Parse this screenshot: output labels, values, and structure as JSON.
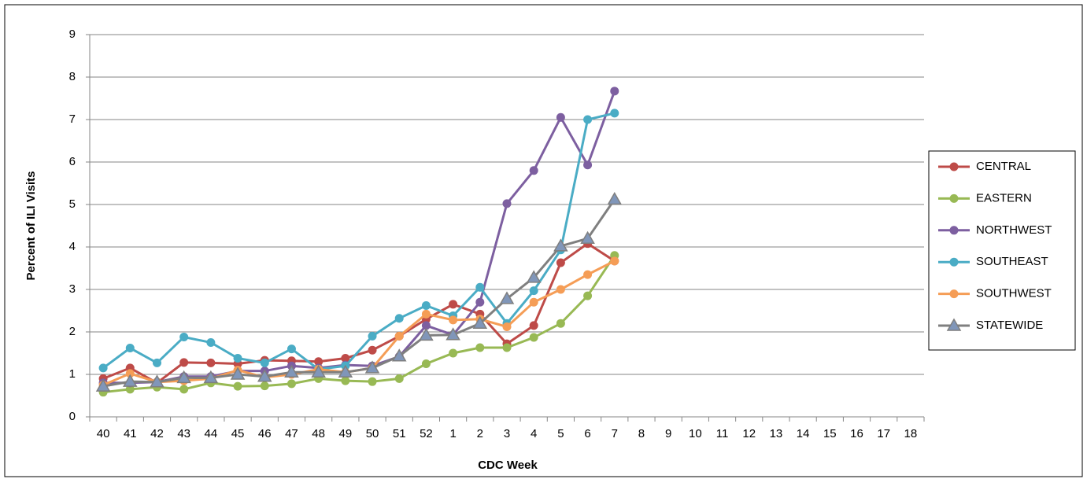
{
  "chart_data": {
    "type": "line",
    "xlabel": "CDC Week",
    "ylabel": "Percent of ILI Visits",
    "categories": [
      40,
      41,
      42,
      43,
      44,
      45,
      46,
      47,
      48,
      49,
      50,
      51,
      52,
      1,
      2,
      3,
      4,
      5,
      6,
      7,
      8,
      9,
      10,
      11,
      12,
      13,
      14,
      15,
      16,
      17,
      18
    ],
    "ylim": [
      0,
      9
    ],
    "yticks": [
      0,
      1,
      2,
      3,
      4,
      5,
      6,
      7,
      8,
      9
    ],
    "grid": true,
    "legend": "right",
    "series": [
      {
        "name": "CENTRAL",
        "color": "#be4b48",
        "marker": "circle",
        "values": [
          0.9,
          1.15,
          0.8,
          1.28,
          1.27,
          1.25,
          1.33,
          1.32,
          1.3,
          1.38,
          1.57,
          1.9,
          2.3,
          2.65,
          2.42,
          1.72,
          2.15,
          3.63,
          4.08,
          3.67,
          null,
          null,
          null,
          null,
          null,
          null,
          null,
          null,
          null,
          null,
          null
        ]
      },
      {
        "name": "EASTERN",
        "color": "#98b954",
        "marker": "circle",
        "values": [
          0.58,
          0.65,
          0.7,
          0.65,
          0.8,
          0.72,
          0.73,
          0.78,
          0.9,
          0.85,
          0.83,
          0.9,
          1.25,
          1.5,
          1.63,
          1.63,
          1.87,
          2.2,
          2.85,
          3.8,
          null,
          null,
          null,
          null,
          null,
          null,
          null,
          null,
          null,
          null,
          null
        ]
      },
      {
        "name": "NORTHWEST",
        "color": "#7d5fa0",
        "marker": "circle",
        "values": [
          0.8,
          0.8,
          0.82,
          0.95,
          0.95,
          1.08,
          1.08,
          1.2,
          1.15,
          1.22,
          1.2,
          1.42,
          2.15,
          1.93,
          2.7,
          5.02,
          5.8,
          7.05,
          5.93,
          7.67,
          null,
          null,
          null,
          null,
          null,
          null,
          null,
          null,
          null,
          null,
          null
        ]
      },
      {
        "name": "SOUTHEAST",
        "color": "#4aacc5",
        "marker": "circle",
        "values": [
          1.15,
          1.62,
          1.27,
          1.88,
          1.75,
          1.38,
          1.27,
          1.6,
          1.12,
          1.2,
          1.9,
          2.32,
          2.62,
          2.38,
          3.05,
          2.2,
          2.97,
          3.93,
          7.0,
          7.15,
          null,
          null,
          null,
          null,
          null,
          null,
          null,
          null,
          null,
          null,
          null
        ]
      },
      {
        "name": "SOUTHWEST",
        "color": "#f59d56",
        "marker": "circle",
        "values": [
          0.75,
          1.02,
          0.82,
          0.85,
          0.9,
          1.1,
          0.93,
          1.0,
          1.12,
          1.05,
          1.15,
          1.9,
          2.42,
          2.28,
          2.3,
          2.12,
          2.7,
          3.0,
          3.35,
          3.67,
          null,
          null,
          null,
          null,
          null,
          null,
          null,
          null,
          null,
          null,
          null
        ]
      },
      {
        "name": "STATEWIDE",
        "color": "#7f7f7f",
        "marker": "triangle",
        "values": [
          0.72,
          0.83,
          0.82,
          0.92,
          0.92,
          1.0,
          0.95,
          1.05,
          1.05,
          1.05,
          1.15,
          1.43,
          1.92,
          1.93,
          2.2,
          2.78,
          3.28,
          4.02,
          4.2,
          5.12,
          null,
          null,
          null,
          null,
          null,
          null,
          null,
          null,
          null,
          null,
          null
        ]
      }
    ]
  }
}
